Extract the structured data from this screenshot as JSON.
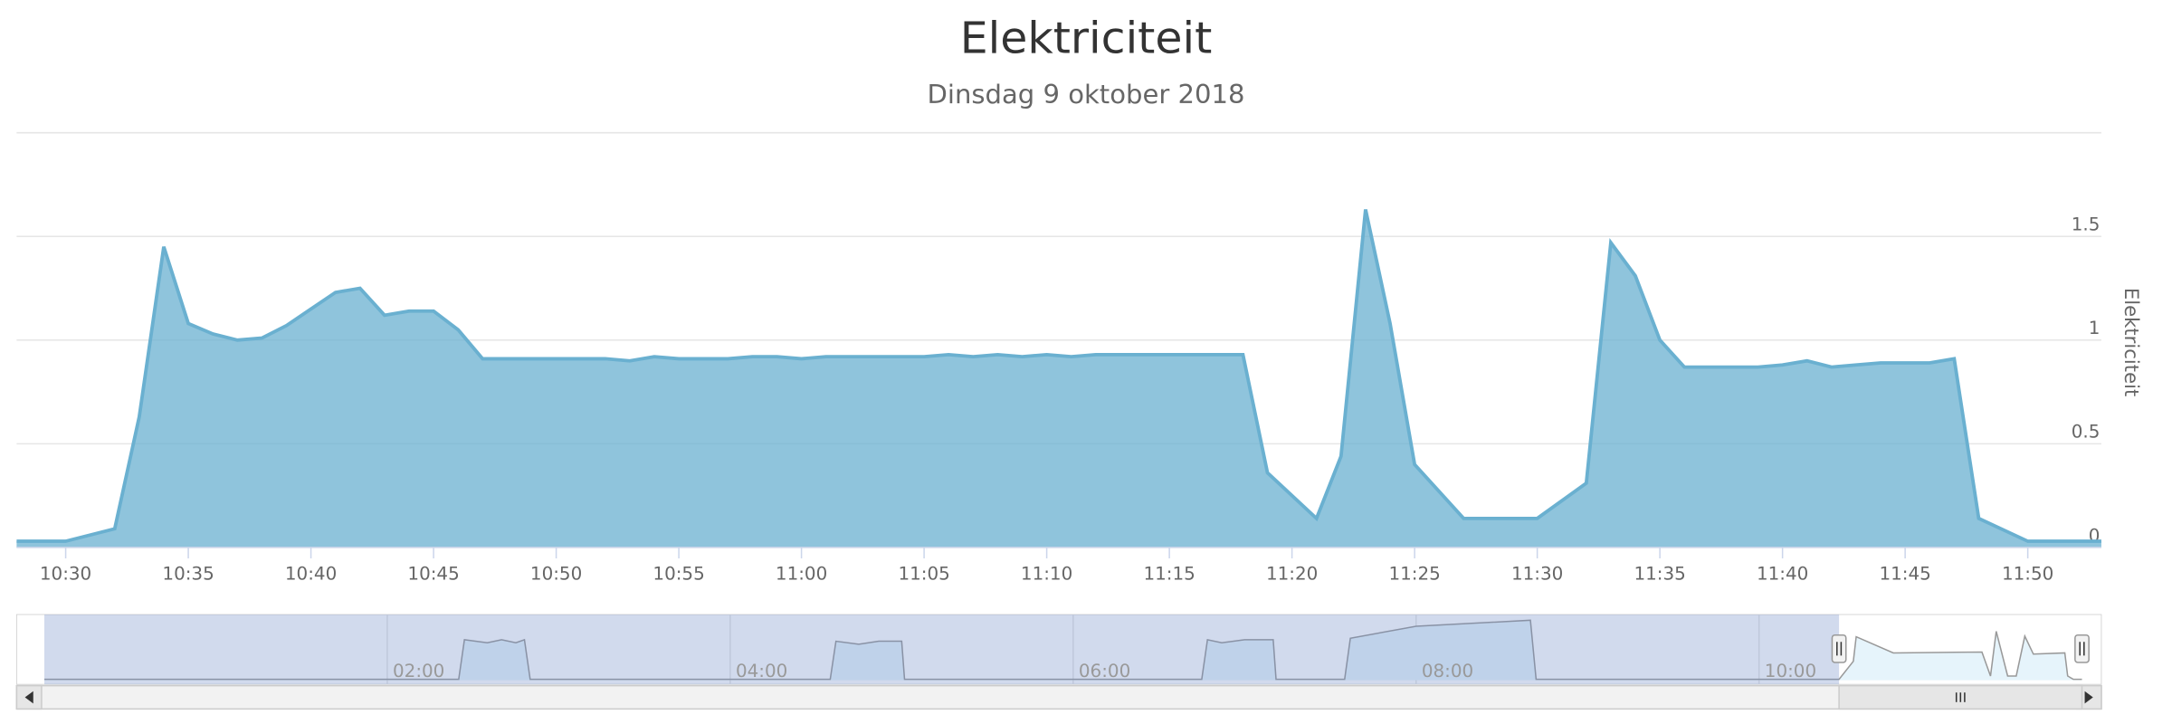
{
  "chart_data": {
    "type": "area",
    "title": "Elektriciteit",
    "subtitle": "Dinsdag 9 oktober 2018",
    "y_axis_label": "Elektriciteit",
    "xlim": [
      "10:28",
      "11:53"
    ],
    "xticks": [
      "10:30",
      "10:35",
      "10:40",
      "10:45",
      "10:50",
      "10:55",
      "11:00",
      "11:05",
      "11:10",
      "11:15",
      "11:20",
      "11:25",
      "11:30",
      "11:35",
      "11:40",
      "11:45",
      "11:50"
    ],
    "ylim": [
      0,
      2
    ],
    "yticks": [
      0,
      0.5,
      1,
      1.5
    ],
    "grid": true,
    "series": [
      {
        "name": "Elektriciteit",
        "color": "#6ab0d0",
        "x": [
          "10:28",
          "10:30",
          "10:32",
          "10:33",
          "10:34",
          "10:35",
          "10:36",
          "10:37",
          "10:38",
          "10:39",
          "10:40",
          "10:41",
          "10:42",
          "10:43",
          "10:44",
          "10:45",
          "10:46",
          "10:47",
          "10:48",
          "10:49",
          "10:50",
          "10:51",
          "10:52",
          "10:53",
          "10:54",
          "10:55",
          "10:56",
          "10:57",
          "10:58",
          "10:59",
          "11:00",
          "11:01",
          "11:02",
          "11:03",
          "11:04",
          "11:05",
          "11:06",
          "11:07",
          "11:08",
          "11:09",
          "11:10",
          "11:11",
          "11:12",
          "11:13",
          "11:14",
          "11:15",
          "11:16",
          "11:17",
          "11:18",
          "11:19",
          "11:21",
          "11:22",
          "11:23",
          "11:24",
          "11:25",
          "11:27",
          "11:28",
          "11:29",
          "11:30",
          "11:32",
          "11:33",
          "11:34",
          "11:35",
          "11:36",
          "11:37",
          "11:38",
          "11:39",
          "11:40",
          "11:41",
          "11:42",
          "11:43",
          "11:44",
          "11:45",
          "11:46",
          "11:47",
          "11:48",
          "11:50",
          "11:53"
        ],
        "values": [
          0.03,
          0.03,
          0.09,
          0.63,
          1.45,
          1.08,
          1.03,
          1.0,
          1.01,
          1.07,
          1.15,
          1.23,
          1.25,
          1.12,
          1.14,
          1.14,
          1.05,
          0.91,
          0.91,
          0.91,
          0.91,
          0.91,
          0.91,
          0.9,
          0.92,
          0.91,
          0.91,
          0.91,
          0.92,
          0.92,
          0.91,
          0.92,
          0.92,
          0.92,
          0.92,
          0.92,
          0.93,
          0.92,
          0.93,
          0.92,
          0.93,
          0.92,
          0.93,
          0.93,
          0.93,
          0.93,
          0.93,
          0.93,
          0.93,
          0.36,
          0.14,
          0.44,
          1.63,
          1.08,
          0.4,
          0.14,
          0.14,
          0.14,
          0.14,
          0.31,
          1.47,
          1.31,
          1.0,
          0.87,
          0.87,
          0.87,
          0.87,
          0.88,
          0.9,
          0.87,
          0.88,
          0.89,
          0.89,
          0.89,
          0.91,
          0.14,
          0.03,
          0.03
        ]
      }
    ],
    "navigator": {
      "xlim": [
        "00:00",
        "11:53"
      ],
      "xticks": [
        "02:00",
        "04:00",
        "06:00",
        "08:00",
        "10:00"
      ],
      "ylim": [
        0,
        2.1
      ],
      "x": [
        "00:00",
        "02:25",
        "02:27",
        "02:35",
        "02:40",
        "02:45",
        "02:48",
        "02:50",
        "04:35",
        "04:37",
        "04:45",
        "04:52",
        "05:00",
        "05:01",
        "06:45",
        "06:47",
        "06:52",
        "07:00",
        "07:10",
        "07:11",
        "07:35",
        "07:37",
        "08:00",
        "08:40",
        "08:42",
        "10:28",
        "10:33",
        "10:34",
        "10:47",
        "11:18",
        "11:21",
        "11:23",
        "11:27",
        "11:30",
        "11:33",
        "11:36",
        "11:47",
        "11:48",
        "11:50",
        "11:53"
      ],
      "values": [
        0.03,
        0.03,
        1.35,
        1.25,
        1.35,
        1.25,
        1.35,
        0.03,
        0.03,
        1.3,
        1.2,
        1.3,
        1.3,
        0.03,
        0.03,
        1.35,
        1.25,
        1.35,
        1.35,
        0.03,
        0.03,
        1.4,
        1.8,
        2.0,
        0.03,
        0.03,
        0.63,
        1.45,
        0.91,
        0.94,
        0.14,
        1.63,
        0.14,
        0.14,
        1.47,
        0.87,
        0.91,
        0.14,
        0.03,
        0.03
      ]
    }
  }
}
